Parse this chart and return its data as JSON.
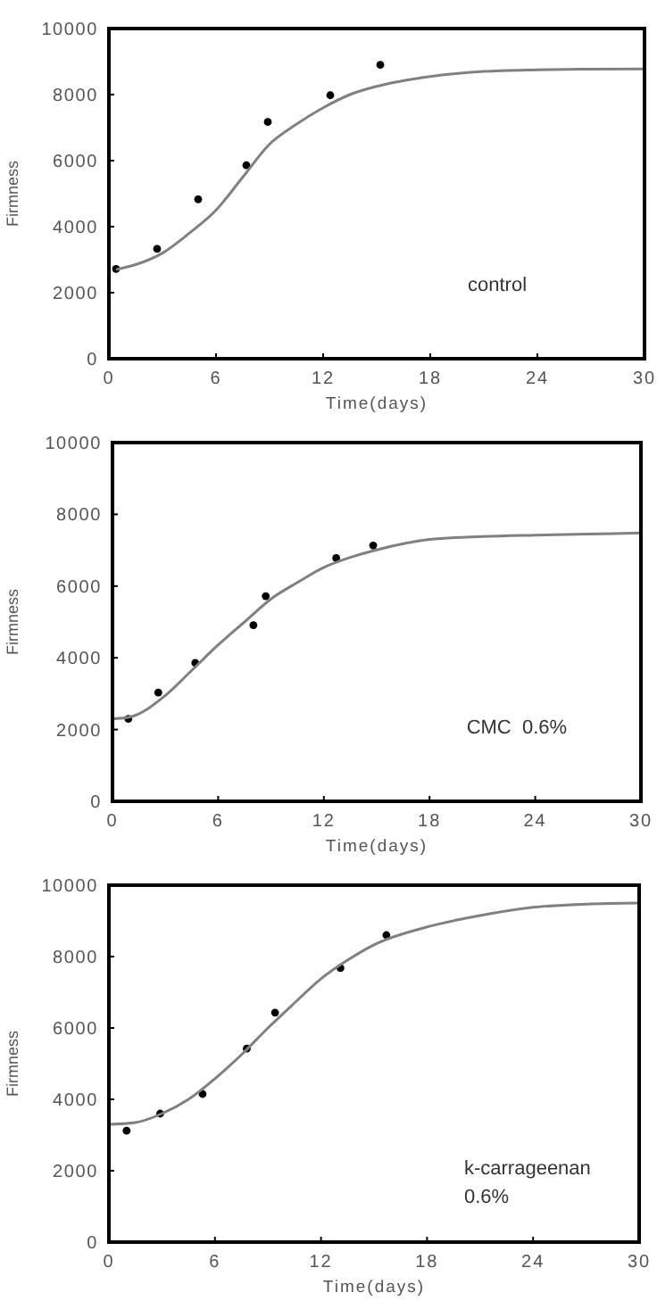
{
  "chart_data": [
    {
      "type": "scatter",
      "xlabel": "Time(days)",
      "ylabel": "Firmness",
      "xlim": [
        0,
        30
      ],
      "ylim": [
        0,
        10000
      ],
      "xticks": [
        0,
        6,
        12,
        18,
        24,
        30
      ],
      "yticks": [
        0,
        2000,
        4000,
        6000,
        8000,
        10000
      ],
      "annotations": [
        "control"
      ],
      "series": [
        {
          "marker": "circle",
          "color": "#000000",
          "x": [
            0.4,
            2.7,
            5.0,
            7.7,
            8.9,
            12.4,
            15.2
          ],
          "values": [
            2720,
            3330,
            4830,
            5860,
            7170,
            7980,
            8900
          ]
        },
        {
          "type": "line",
          "color": "#808080",
          "x": [
            0.4,
            1.5,
            3,
            4.5,
            6,
            7.5,
            9,
            10.5,
            12,
            13.5,
            15,
            18,
            21,
            24,
            27,
            30
          ],
          "values": [
            2700,
            2850,
            3200,
            3800,
            4500,
            5500,
            6500,
            7100,
            7600,
            8000,
            8250,
            8550,
            8700,
            8750,
            8770,
            8780
          ]
        }
      ]
    },
    {
      "type": "scatter",
      "xlabel": "Time(days)",
      "ylabel": "Firmness",
      "xlim": [
        0,
        30
      ],
      "ylim": [
        0,
        10000
      ],
      "xticks": [
        0,
        6,
        12,
        18,
        24,
        30
      ],
      "yticks": [
        0,
        2000,
        4000,
        6000,
        8000,
        10000
      ],
      "annotations": [
        "CMC  0.6%"
      ],
      "series": [
        {
          "marker": "circle",
          "color": "#000000",
          "x": [
            0.9,
            2.6,
            4.7,
            8.0,
            8.7,
            12.7,
            14.8
          ],
          "values": [
            2300,
            3030,
            3860,
            4910,
            5720,
            6780,
            7130
          ]
        },
        {
          "type": "line",
          "color": "#808080",
          "x": [
            0,
            1,
            3,
            4.5,
            6,
            7.5,
            9,
            10.5,
            12,
            13.5,
            15,
            18,
            21,
            24,
            27,
            30
          ],
          "values": [
            2300,
            2350,
            2950,
            3650,
            4360,
            5000,
            5640,
            6100,
            6520,
            6800,
            7010,
            7300,
            7380,
            7420,
            7450,
            7480
          ]
        }
      ]
    },
    {
      "type": "scatter",
      "xlabel": "Time(days)",
      "ylabel": "Firmness",
      "xlim": [
        0,
        30
      ],
      "ylim": [
        0,
        10000
      ],
      "xticks": [
        0,
        6,
        12,
        18,
        24,
        30
      ],
      "yticks": [
        0,
        2000,
        4000,
        6000,
        8000,
        10000
      ],
      "annotations": [
        "k-carrageenan\n0.6%"
      ],
      "series": [
        {
          "marker": "circle",
          "color": "#000000",
          "x": [
            1.0,
            2.9,
            5.3,
            7.8,
            9.4,
            13.1,
            15.7
          ],
          "values": [
            3120,
            3600,
            4150,
            5420,
            6430,
            7680,
            8600
          ]
        },
        {
          "type": "line",
          "color": "#808080",
          "x": [
            0,
            1.5,
            3,
            4.5,
            6,
            7.5,
            9,
            10.5,
            12,
            13.5,
            15,
            18,
            21,
            24,
            27,
            30
          ],
          "values": [
            3300,
            3350,
            3600,
            4000,
            4580,
            5250,
            6000,
            6700,
            7380,
            7900,
            8330,
            8830,
            9150,
            9380,
            9470,
            9500
          ]
        }
      ]
    }
  ]
}
